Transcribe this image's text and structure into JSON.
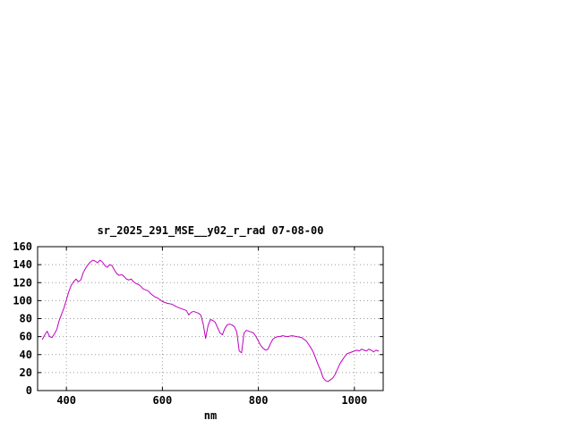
{
  "page": {
    "background": "#ffffff",
    "text_color": "#000000"
  },
  "chart_data": {
    "type": "line",
    "title": "sr_2025_291_MSE__y02_r_rad 07-08-00",
    "xlabel": "nm",
    "ylabel": "",
    "xlim": [
      340,
      1060
    ],
    "ylim": [
      0,
      160
    ],
    "xticks": [
      400,
      600,
      800,
      1000
    ],
    "yticks": [
      0,
      20,
      40,
      60,
      80,
      100,
      120,
      140,
      160
    ],
    "grid": true,
    "grid_style": "dotted",
    "grid_color": "#9a9a9a",
    "legend_position": "none",
    "line_color": "#c000c0",
    "border_color": "#000000",
    "series": [
      {
        "name": "sr_2025_291_MSE__y02_r_rad",
        "points": [
          [
            350,
            57
          ],
          [
            355,
            62
          ],
          [
            360,
            66
          ],
          [
            365,
            60
          ],
          [
            370,
            59
          ],
          [
            375,
            63
          ],
          [
            380,
            68
          ],
          [
            385,
            78
          ],
          [
            390,
            85
          ],
          [
            395,
            92
          ],
          [
            400,
            101
          ],
          [
            405,
            110
          ],
          [
            410,
            117
          ],
          [
            415,
            121
          ],
          [
            420,
            124
          ],
          [
            425,
            121
          ],
          [
            430,
            123
          ],
          [
            435,
            131
          ],
          [
            440,
            136
          ],
          [
            445,
            140
          ],
          [
            450,
            143
          ],
          [
            455,
            145
          ],
          [
            460,
            144
          ],
          [
            465,
            142
          ],
          [
            470,
            145
          ],
          [
            475,
            143
          ],
          [
            480,
            139
          ],
          [
            485,
            137
          ],
          [
            490,
            140
          ],
          [
            495,
            139
          ],
          [
            500,
            134
          ],
          [
            505,
            130
          ],
          [
            510,
            128
          ],
          [
            515,
            129
          ],
          [
            520,
            127
          ],
          [
            525,
            124
          ],
          [
            530,
            123
          ],
          [
            535,
            124
          ],
          [
            540,
            121
          ],
          [
            545,
            119
          ],
          [
            550,
            118
          ],
          [
            555,
            116
          ],
          [
            560,
            113
          ],
          [
            565,
            112
          ],
          [
            570,
            111
          ],
          [
            575,
            108
          ],
          [
            580,
            106
          ],
          [
            585,
            104
          ],
          [
            590,
            103
          ],
          [
            595,
            101
          ],
          [
            600,
            99
          ],
          [
            610,
            97
          ],
          [
            620,
            96
          ],
          [
            630,
            93
          ],
          [
            640,
            91
          ],
          [
            650,
            89
          ],
          [
            655,
            84
          ],
          [
            660,
            87
          ],
          [
            665,
            88
          ],
          [
            670,
            87
          ],
          [
            675,
            86
          ],
          [
            680,
            84
          ],
          [
            685,
            74
          ],
          [
            690,
            58
          ],
          [
            695,
            72
          ],
          [
            700,
            79
          ],
          [
            705,
            78
          ],
          [
            710,
            76
          ],
          [
            715,
            70
          ],
          [
            720,
            64
          ],
          [
            725,
            62
          ],
          [
            730,
            69
          ],
          [
            735,
            73
          ],
          [
            740,
            74
          ],
          [
            745,
            73
          ],
          [
            750,
            71
          ],
          [
            755,
            65
          ],
          [
            760,
            44
          ],
          [
            765,
            42
          ],
          [
            770,
            64
          ],
          [
            775,
            67
          ],
          [
            780,
            66
          ],
          [
            785,
            65
          ],
          [
            790,
            64
          ],
          [
            795,
            60
          ],
          [
            800,
            55
          ],
          [
            805,
            50
          ],
          [
            810,
            47
          ],
          [
            815,
            45
          ],
          [
            820,
            46
          ],
          [
            825,
            52
          ],
          [
            830,
            57
          ],
          [
            835,
            59
          ],
          [
            840,
            60
          ],
          [
            845,
            60
          ],
          [
            850,
            61
          ],
          [
            860,
            60
          ],
          [
            870,
            61
          ],
          [
            880,
            60
          ],
          [
            890,
            59
          ],
          [
            900,
            55
          ],
          [
            910,
            47
          ],
          [
            915,
            42
          ],
          [
            920,
            35
          ],
          [
            925,
            28
          ],
          [
            930,
            22
          ],
          [
            935,
            14
          ],
          [
            940,
            11
          ],
          [
            945,
            10
          ],
          [
            950,
            12
          ],
          [
            955,
            14
          ],
          [
            960,
            18
          ],
          [
            965,
            24
          ],
          [
            970,
            30
          ],
          [
            975,
            34
          ],
          [
            980,
            38
          ],
          [
            985,
            41
          ],
          [
            990,
            42
          ],
          [
            995,
            43
          ],
          [
            1000,
            44
          ],
          [
            1005,
            45
          ],
          [
            1010,
            44
          ],
          [
            1015,
            46
          ],
          [
            1020,
            45
          ],
          [
            1025,
            44
          ],
          [
            1030,
            46
          ],
          [
            1035,
            45
          ],
          [
            1040,
            43
          ],
          [
            1045,
            45
          ],
          [
            1050,
            44
          ]
        ]
      }
    ]
  }
}
